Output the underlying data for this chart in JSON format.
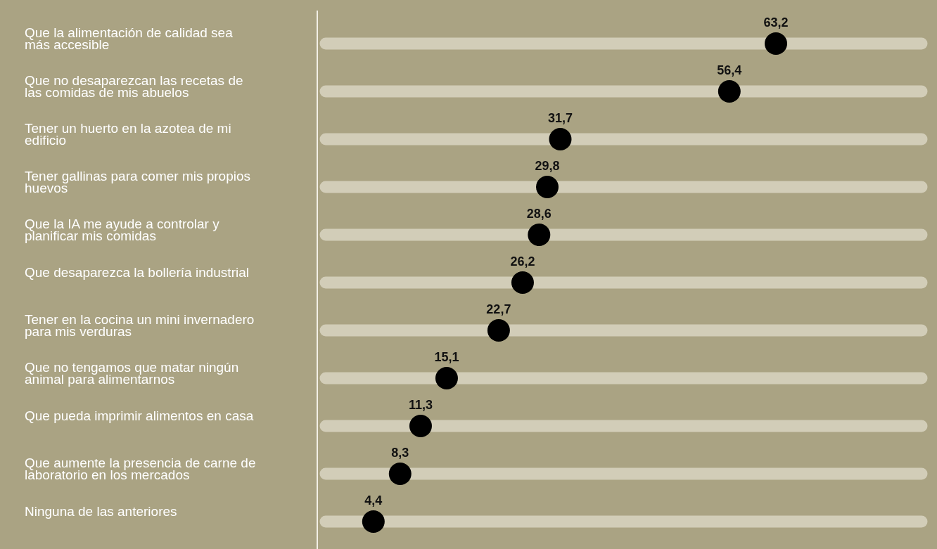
{
  "chart_data": {
    "type": "scatter",
    "orientation": "horizontal",
    "marker": "circle",
    "categories": [
      "Que la alimentación de calidad sea más accesible",
      "Que no desaparezcan las recetas de las comidas de mis abuelos",
      "Tener un huerto en la azotea de mi edificio",
      "Tener gallinas para comer mis propios huevos",
      "Que la IA me ayude a controlar y planificar mis comidas",
      "Que desaparezca la bollería industrial",
      "Tener en la cocina un mini invernadero para mis verduras",
      "Que no tengamos que matar ningún animal para alimentarnos",
      "Que pueda imprimir alimentos en casa",
      "Que aumente la presencia de carne de laboratorio en los mercados",
      "Ninguna de las anteriores"
    ],
    "series": [
      {
        "color": "#000000",
        "values": [
          63.2,
          56.4,
          31.7,
          29.8,
          28.6,
          26.2,
          22.7,
          15.1,
          11.3,
          8.3,
          4.4
        ],
        "value_labels": [
          "63,2",
          "56,4",
          "31,7",
          "29,8",
          "28,6",
          "26,2",
          "22,7",
          "15,1",
          "11,3",
          "8,3",
          "4,4"
        ]
      }
    ]
  }
}
